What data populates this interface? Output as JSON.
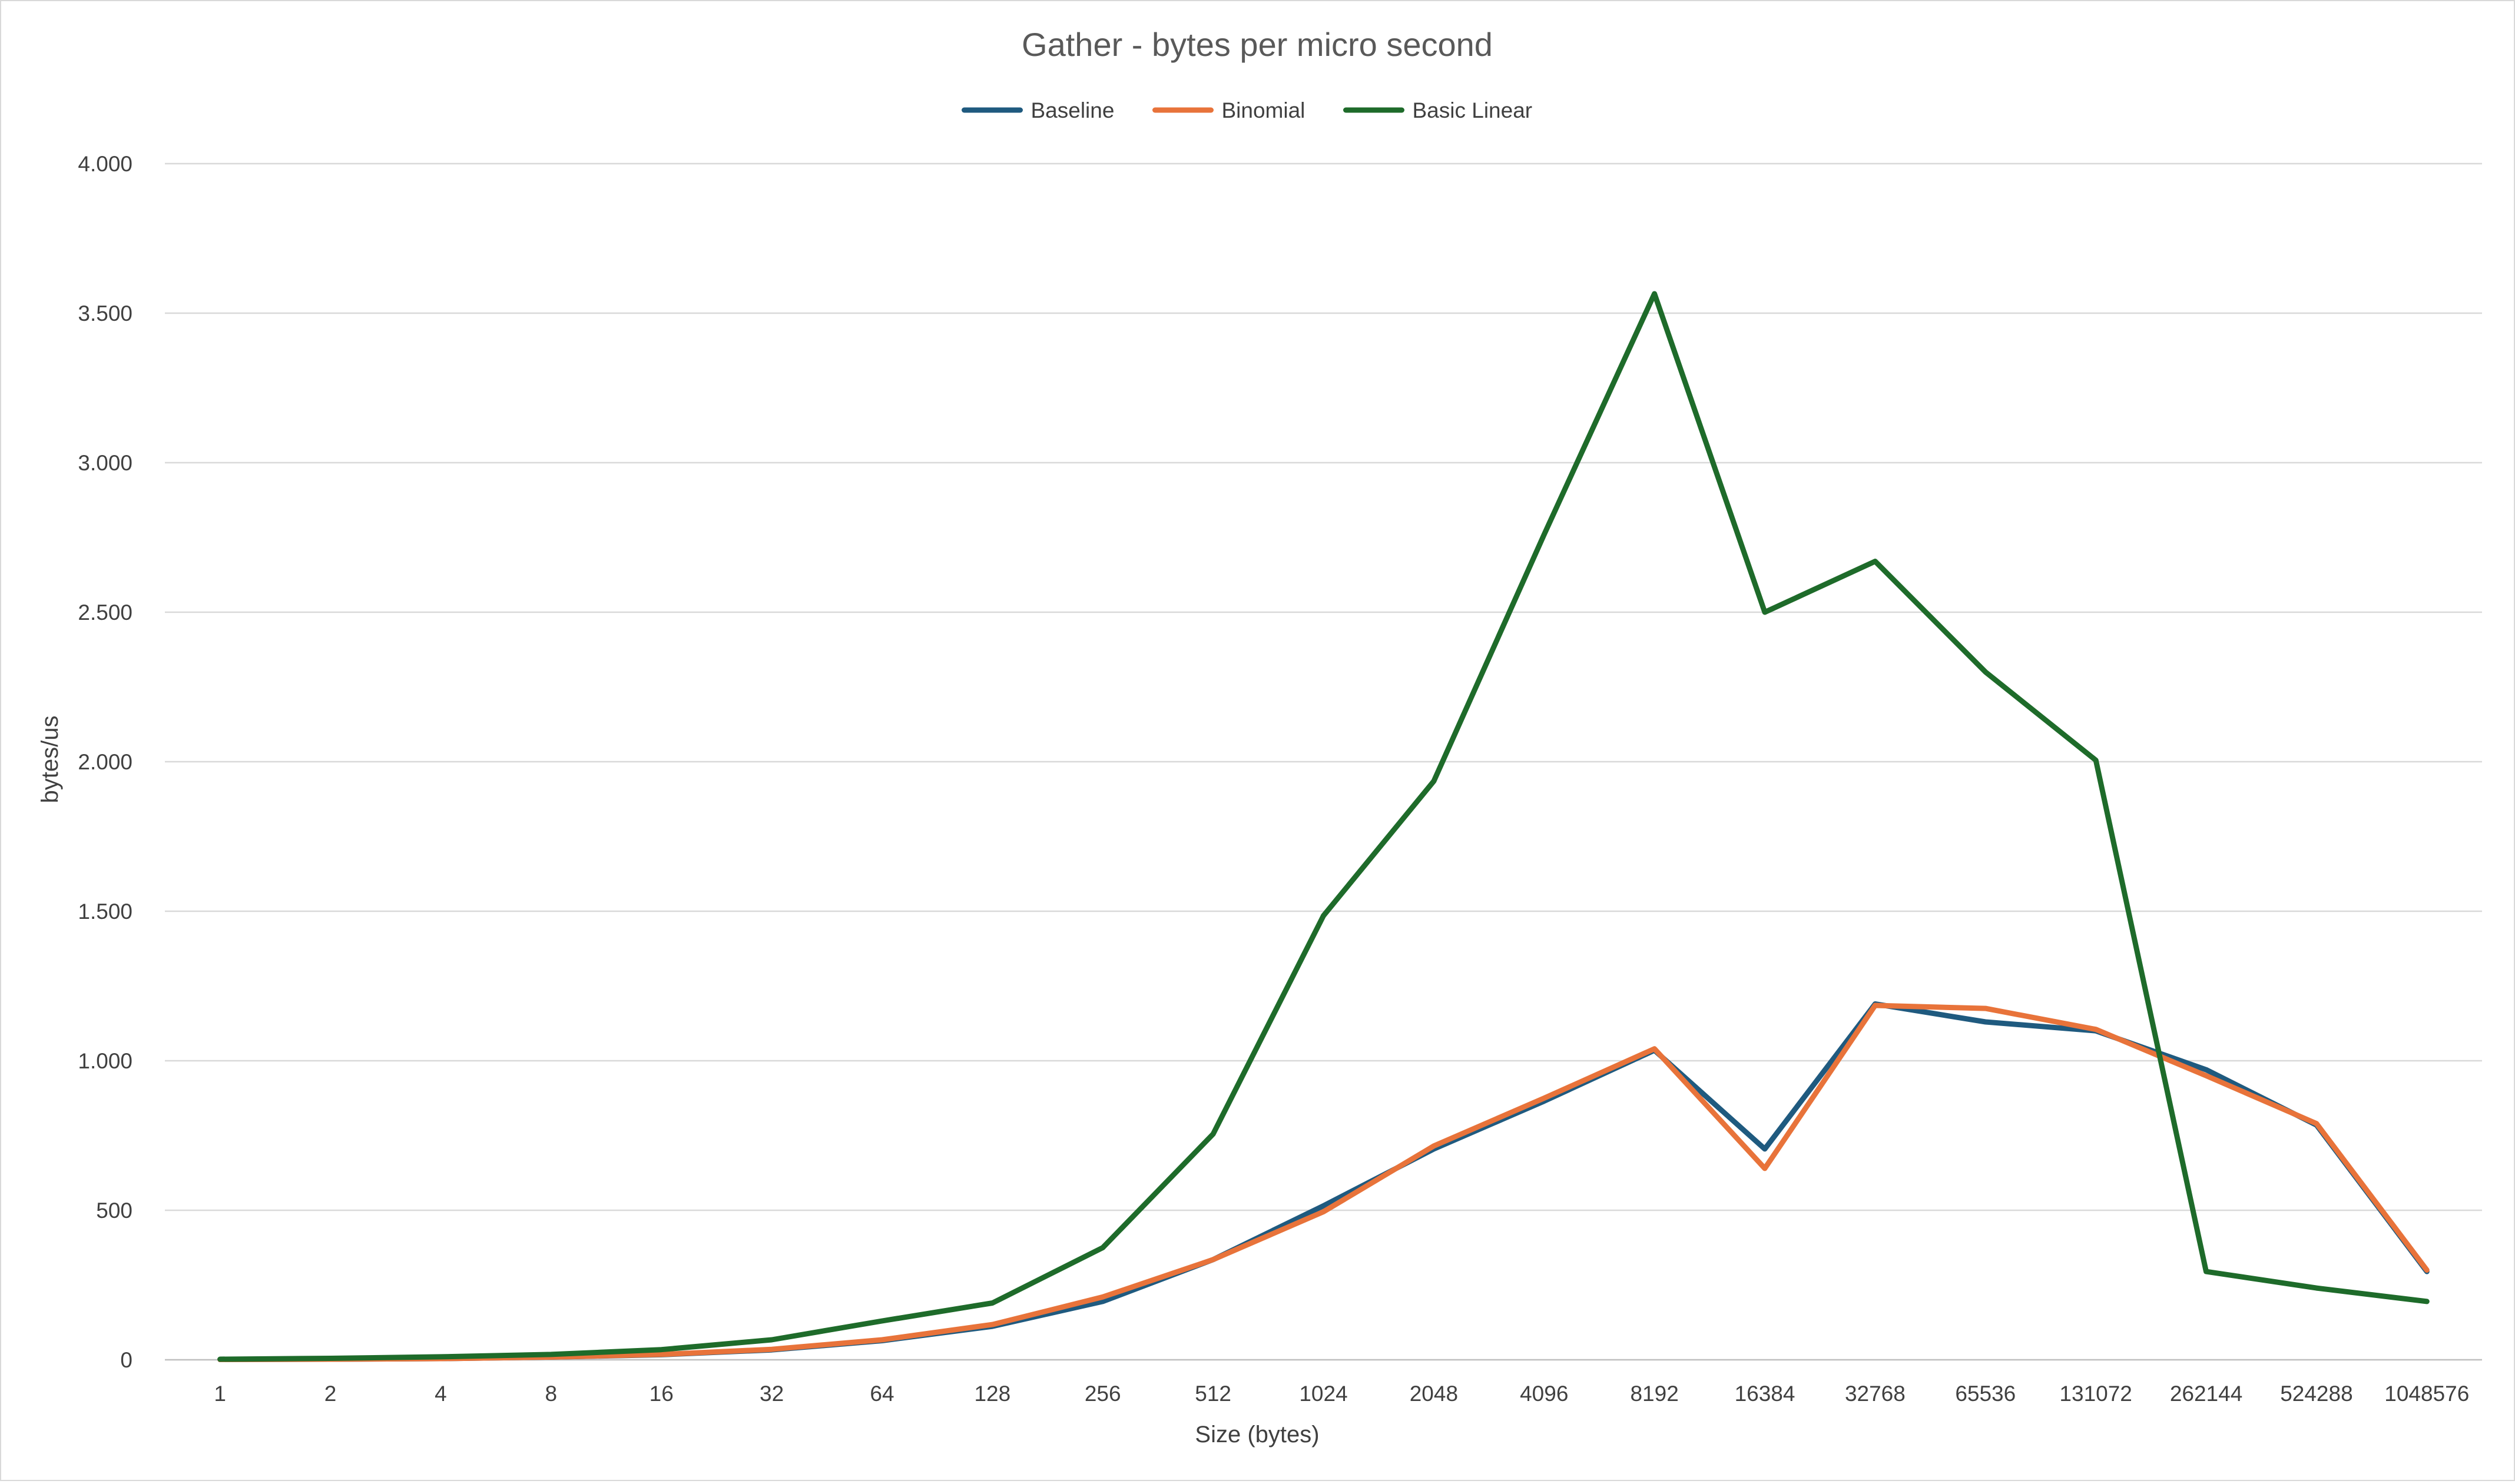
{
  "chart_data": {
    "type": "line",
    "title": "Gather - bytes per micro second",
    "xlabel": "Size (bytes)",
    "ylabel": "bytes/us",
    "categories": [
      "1",
      "2",
      "4",
      "8",
      "16",
      "32",
      "64",
      "128",
      "256",
      "512",
      "1024",
      "2048",
      "4096",
      "8192",
      "16384",
      "32768",
      "65536",
      "131072",
      "262144",
      "524288",
      "1048576"
    ],
    "ylim": [
      0,
      4000
    ],
    "yticks": [
      0,
      500,
      1000,
      1500,
      2000,
      2500,
      3000,
      3500,
      4000
    ],
    "ytick_labels": [
      "0",
      "500",
      "1.000",
      "1.500",
      "2.000",
      "2.500",
      "3.000",
      "3.500",
      "4.000"
    ],
    "grid": "horizontal",
    "legend_position": "top",
    "series": [
      {
        "name": "Baseline",
        "color": "#1f5a7f",
        "values": [
          1,
          2,
          4,
          9,
          17,
          33,
          64,
          112,
          195,
          335,
          515,
          705,
          865,
          1035,
          705,
          1190,
          1130,
          1100,
          970,
          785,
          295
        ]
      },
      {
        "name": "Binomial",
        "color": "#e8733a",
        "values": [
          1,
          2,
          4,
          9,
          18,
          35,
          67,
          118,
          210,
          335,
          495,
          715,
          875,
          1040,
          640,
          1185,
          1175,
          1105,
          950,
          790,
          300
        ]
      },
      {
        "name": "Basic Linear",
        "color": "#1e6b2a",
        "values": [
          2,
          5,
          10,
          18,
          34,
          67,
          130,
          190,
          375,
          755,
          1485,
          1935,
          2760,
          3565,
          2500,
          2670,
          2300,
          2005,
          295,
          240,
          195
        ]
      }
    ]
  }
}
